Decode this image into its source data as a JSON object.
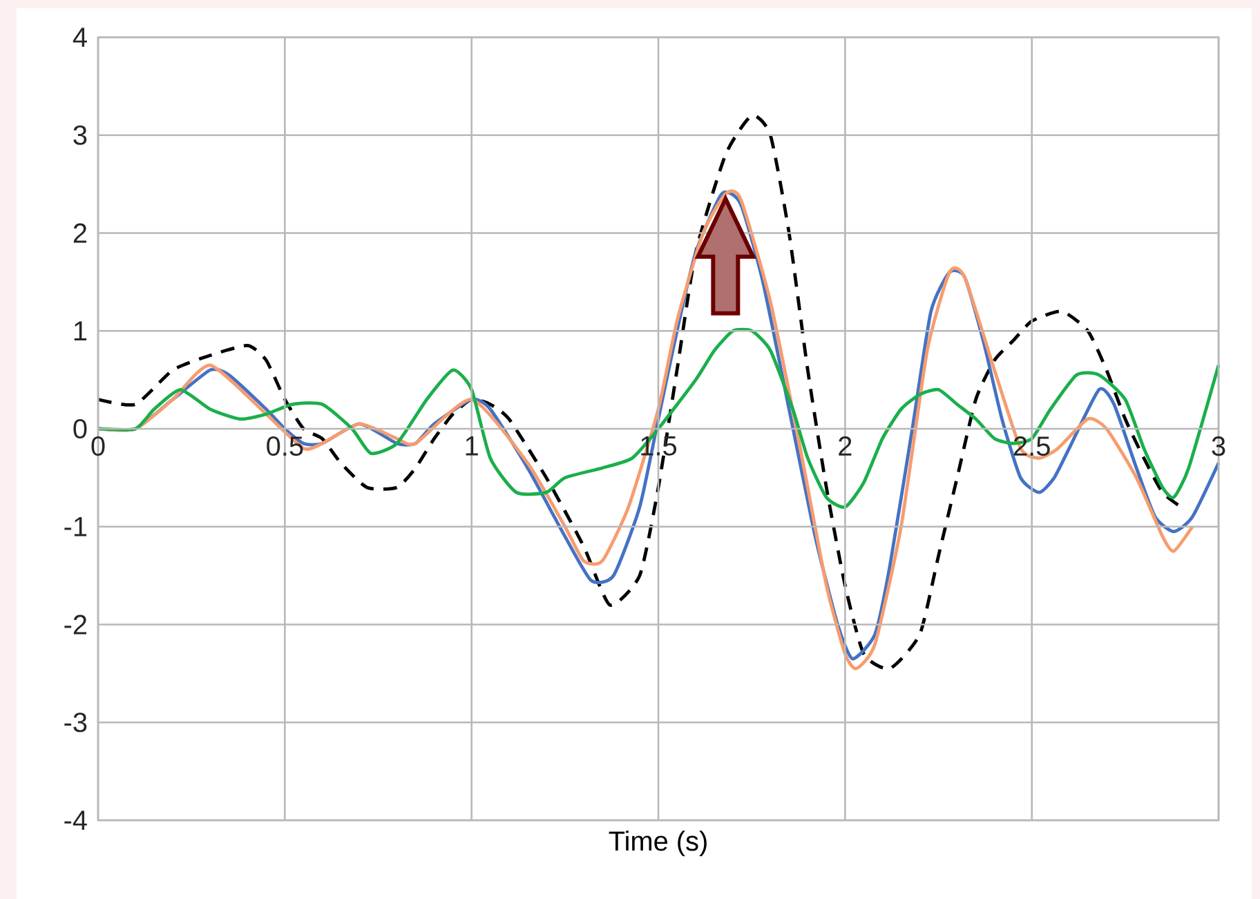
{
  "chart_data": {
    "type": "line",
    "xlabel": "Time (s)",
    "xlim": [
      0,
      3
    ],
    "ylim": [
      -4,
      4
    ],
    "xticks": [
      0,
      0.5,
      1,
      1.5,
      2,
      2.5,
      3
    ],
    "yticks": [
      -4,
      -3,
      -2,
      -1,
      0,
      1,
      2,
      3,
      4
    ],
    "grid": true,
    "marker": "none",
    "series": [
      {
        "color": "#000000",
        "line_style": "dashed",
        "x": [
          0,
          0.1,
          0.2,
          0.3,
          0.4,
          0.45,
          0.5,
          0.55,
          0.6,
          0.65,
          0.72,
          0.8,
          0.85,
          0.9,
          0.95,
          1.0,
          1.05,
          1.1,
          1.2,
          1.3,
          1.37,
          1.45,
          1.5,
          1.55,
          1.6,
          1.68,
          1.75,
          1.8,
          1.85,
          1.9,
          1.95,
          2.0,
          2.05,
          2.12,
          2.2,
          2.25,
          2.3,
          2.35,
          2.4,
          2.45,
          2.5,
          2.58,
          2.65,
          2.7,
          2.75,
          2.8,
          2.85,
          2.9
        ],
        "values": [
          0.3,
          0.25,
          0.6,
          0.75,
          0.85,
          0.7,
          0.3,
          0.0,
          -0.1,
          -0.35,
          -0.6,
          -0.6,
          -0.4,
          -0.1,
          0.15,
          0.3,
          0.25,
          0.1,
          -0.5,
          -1.2,
          -1.8,
          -1.5,
          -0.6,
          0.6,
          1.8,
          2.8,
          3.2,
          3.0,
          2.0,
          0.6,
          -0.6,
          -1.6,
          -2.3,
          -2.45,
          -2.1,
          -1.3,
          -0.5,
          0.3,
          0.7,
          0.9,
          1.1,
          1.2,
          1.0,
          0.6,
          0.1,
          -0.3,
          -0.65,
          -0.8
        ]
      },
      {
        "color": "#4472c4",
        "line_style": "solid",
        "x": [
          0,
          0.1,
          0.2,
          0.3,
          0.35,
          0.45,
          0.5,
          0.55,
          0.6,
          0.7,
          0.8,
          0.85,
          0.9,
          1.0,
          1.05,
          1.15,
          1.25,
          1.32,
          1.38,
          1.45,
          1.5,
          1.55,
          1.6,
          1.67,
          1.72,
          1.78,
          1.85,
          1.92,
          1.98,
          2.02,
          2.08,
          2.12,
          2.18,
          2.23,
          2.28,
          2.32,
          2.37,
          2.42,
          2.47,
          2.52,
          2.56,
          2.6,
          2.68,
          2.72,
          2.78,
          2.83,
          2.88,
          2.93,
          3.0
        ],
        "values": [
          0,
          0,
          0.3,
          0.6,
          0.55,
          0.2,
          0.0,
          -0.15,
          -0.15,
          0.05,
          -0.15,
          -0.15,
          0.05,
          0.3,
          0.2,
          -0.4,
          -1.1,
          -1.55,
          -1.5,
          -0.8,
          0.1,
          1.0,
          1.8,
          2.4,
          2.3,
          1.5,
          0.2,
          -1.1,
          -2.0,
          -2.35,
          -2.1,
          -1.4,
          0.0,
          1.2,
          1.6,
          1.55,
          0.9,
          0.1,
          -0.5,
          -0.65,
          -0.5,
          -0.2,
          0.4,
          0.25,
          -0.4,
          -0.9,
          -1.05,
          -0.9,
          -0.35
        ]
      },
      {
        "color": "#f79c6e",
        "line_style": "solid",
        "x": [
          0,
          0.1,
          0.2,
          0.3,
          0.45,
          0.55,
          0.6,
          0.7,
          0.8,
          0.85,
          1.0,
          1.15,
          1.25,
          1.3,
          1.35,
          1.42,
          1.5,
          1.55,
          1.62,
          1.68,
          1.72,
          1.8,
          1.88,
          1.95,
          2.0,
          2.03,
          2.08,
          2.15,
          2.22,
          2.28,
          2.32,
          2.4,
          2.47,
          2.52,
          2.57,
          2.65,
          2.7,
          2.78,
          2.85,
          2.88,
          2.93
        ],
        "values": [
          0,
          0,
          0.3,
          0.65,
          0.15,
          -0.2,
          -0.15,
          0.05,
          -0.1,
          -0.15,
          0.3,
          -0.35,
          -1.0,
          -1.35,
          -1.35,
          -0.8,
          0.2,
          1.1,
          2.0,
          2.4,
          2.35,
          1.3,
          -0.2,
          -1.6,
          -2.3,
          -2.45,
          -2.2,
          -1.0,
          0.8,
          1.6,
          1.55,
          0.6,
          -0.2,
          -0.3,
          -0.2,
          0.1,
          0.0,
          -0.5,
          -1.1,
          -1.25,
          -1.0
        ]
      },
      {
        "color": "#1aaf4b",
        "line_style": "solid",
        "x": [
          0,
          0.1,
          0.15,
          0.22,
          0.3,
          0.38,
          0.45,
          0.52,
          0.6,
          0.68,
          0.73,
          0.8,
          0.88,
          0.95,
          1.0,
          1.05,
          1.12,
          1.2,
          1.25,
          1.35,
          1.43,
          1.5,
          1.6,
          1.65,
          1.7,
          1.75,
          1.8,
          1.86,
          1.9,
          1.95,
          2.0,
          2.05,
          2.1,
          2.15,
          2.2,
          2.25,
          2.3,
          2.35,
          2.4,
          2.45,
          2.5,
          2.55,
          2.62,
          2.68,
          2.75,
          2.8,
          2.85,
          2.88,
          2.92,
          3.0
        ],
        "values": [
          0,
          0,
          0.2,
          0.4,
          0.2,
          0.1,
          0.15,
          0.25,
          0.25,
          0.0,
          -0.25,
          -0.15,
          0.3,
          0.6,
          0.4,
          -0.3,
          -0.65,
          -0.65,
          -0.5,
          -0.4,
          -0.3,
          0.0,
          0.5,
          0.8,
          1.0,
          1.0,
          0.8,
          0.2,
          -0.3,
          -0.7,
          -0.8,
          -0.55,
          -0.1,
          0.2,
          0.35,
          0.4,
          0.25,
          0.1,
          -0.1,
          -0.15,
          -0.1,
          0.2,
          0.55,
          0.55,
          0.3,
          -0.2,
          -0.6,
          -0.7,
          -0.4,
          0.65
        ]
      }
    ]
  }
}
